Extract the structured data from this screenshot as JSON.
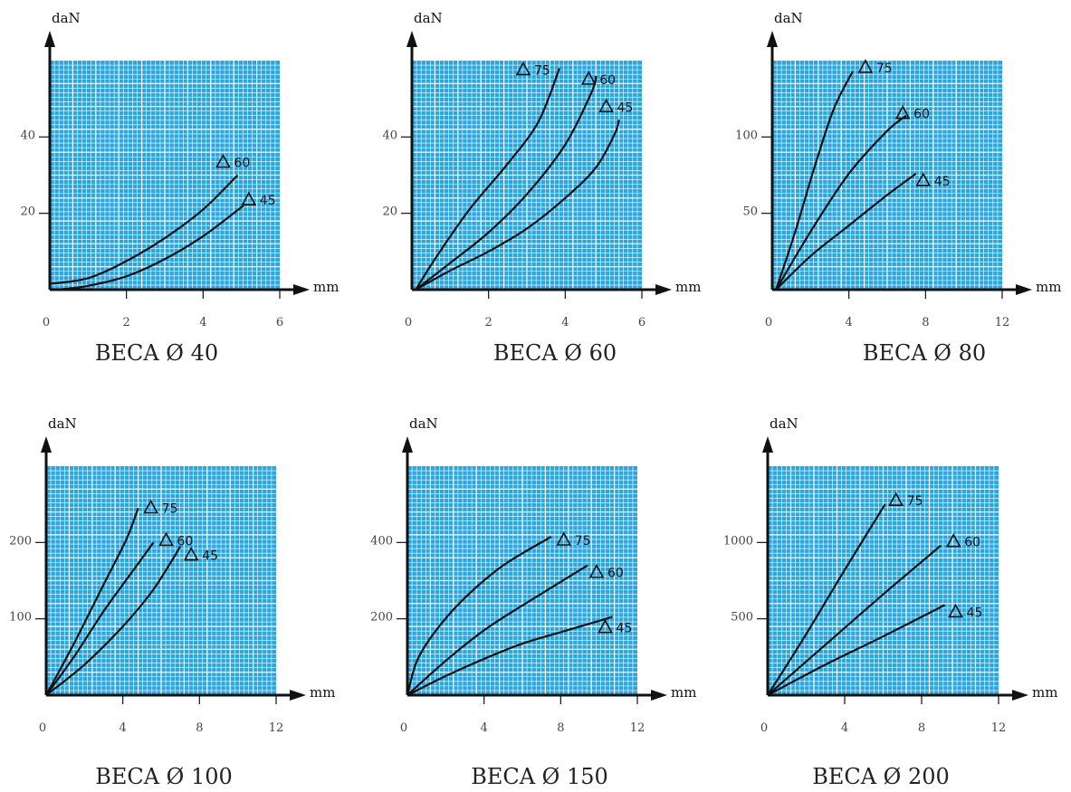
{
  "colors": {
    "grid_bg": "#2aa7df",
    "grid_line": "#ffffff",
    "axis": "#111111",
    "curve": "#111111"
  },
  "chart_data": [
    {
      "type": "line",
      "title": "BECA Ø 40",
      "xlabel": "mm",
      "ylabel": "daN",
      "xlim": [
        0,
        6
      ],
      "ylim": [
        0,
        60
      ],
      "xticks": [
        0,
        2,
        4,
        6
      ],
      "yticks": [
        20,
        40
      ],
      "grid": true,
      "marker": "triangle",
      "series": [
        {
          "name": "60",
          "points": [
            [
              0,
              1.5
            ],
            [
              1,
              3
            ],
            [
              2,
              7.5
            ],
            [
              3,
              13.5
            ],
            [
              4,
              21
            ],
            [
              4.9,
              30
            ]
          ]
        },
        {
          "name": "45",
          "points": [
            [
              0.2,
              0
            ],
            [
              1,
              1
            ],
            [
              2,
              3.5
            ],
            [
              3,
              8
            ],
            [
              4,
              14
            ],
            [
              5.05,
              22
            ]
          ]
        }
      ]
    },
    {
      "type": "line",
      "title": "BECA Ø 60",
      "xlabel": "mm",
      "ylabel": "daN",
      "xlim": [
        0,
        6
      ],
      "ylim": [
        0,
        60
      ],
      "xticks": [
        0,
        2,
        4,
        6
      ],
      "yticks": [
        20,
        40
      ],
      "grid": true,
      "marker": "triangle",
      "series": [
        {
          "name": "75",
          "points": [
            [
              0.1,
              0
            ],
            [
              0.6,
              8
            ],
            [
              1.5,
              21
            ],
            [
              2.5,
              33
            ],
            [
              3.3,
              44
            ],
            [
              3.85,
              58
            ]
          ]
        },
        {
          "name": "60",
          "points": [
            [
              0.1,
              0
            ],
            [
              1,
              7
            ],
            [
              2,
              15
            ],
            [
              3,
              25
            ],
            [
              4,
              38
            ],
            [
              4.7,
              52
            ],
            [
              4.8,
              56
            ]
          ]
        },
        {
          "name": "45",
          "points": [
            [
              0.1,
              0
            ],
            [
              1,
              5
            ],
            [
              2,
              10
            ],
            [
              3,
              16
            ],
            [
              4,
              24
            ],
            [
              4.8,
              32
            ],
            [
              5.3,
              41
            ],
            [
              5.4,
              44.5
            ]
          ]
        }
      ]
    },
    {
      "type": "line",
      "title": "BECA Ø 80",
      "xlabel": "mm",
      "ylabel": "daN",
      "xlim": [
        0,
        12
      ],
      "ylim": [
        0,
        150
      ],
      "xticks": [
        0,
        4,
        8,
        12
      ],
      "yticks": [
        50,
        100
      ],
      "grid": true,
      "marker": "triangle",
      "series": [
        {
          "name": "75",
          "points": [
            [
              0.2,
              0
            ],
            [
              1.2,
              38
            ],
            [
              2.2,
              80
            ],
            [
              3.2,
              118
            ],
            [
              4.2,
              143
            ]
          ]
        },
        {
          "name": "60",
          "points": [
            [
              0.2,
              0
            ],
            [
              2,
              38
            ],
            [
              4,
              76
            ],
            [
              6,
              104
            ],
            [
              7,
              114
            ]
          ]
        },
        {
          "name": "45",
          "points": [
            [
              0.2,
              0
            ],
            [
              2,
              22
            ],
            [
              4,
              42
            ],
            [
              6,
              62
            ],
            [
              7.5,
              76
            ]
          ]
        }
      ]
    },
    {
      "type": "line",
      "title": "BECA Ø 100",
      "xlabel": "mm",
      "ylabel": "daN",
      "xlim": [
        0,
        12
      ],
      "ylim": [
        0,
        300
      ],
      "xticks": [
        0,
        4,
        8,
        12
      ],
      "yticks": [
        100,
        200
      ],
      "grid": true,
      "marker": "triangle",
      "series": [
        {
          "name": "75",
          "points": [
            [
              0,
              0
            ],
            [
              1.5,
              70
            ],
            [
              3,
              145
            ],
            [
              4.2,
              205
            ],
            [
              4.8,
              245
            ]
          ]
        },
        {
          "name": "60",
          "points": [
            [
              0,
              0
            ],
            [
              1.5,
              52
            ],
            [
              3,
              110
            ],
            [
              4.5,
              162
            ],
            [
              5.6,
              200
            ]
          ]
        },
        {
          "name": "45",
          "points": [
            [
              0,
              0
            ],
            [
              2,
              40
            ],
            [
              4,
              90
            ],
            [
              5.5,
              135
            ],
            [
              6.6,
              178
            ],
            [
              7,
              195
            ]
          ]
        }
      ]
    },
    {
      "type": "line",
      "title": "BECA Ø 150",
      "xlabel": "mm",
      "ylabel": "daN",
      "xlim": [
        0,
        12
      ],
      "ylim": [
        0,
        600
      ],
      "xticks": [
        0,
        4,
        8,
        12
      ],
      "yticks": [
        200,
        400
      ],
      "grid": true,
      "marker": "triangle",
      "series": [
        {
          "name": "75",
          "points": [
            [
              0,
              0
            ],
            [
              0.5,
              90
            ],
            [
              1.5,
              170
            ],
            [
              3,
              255
            ],
            [
              5,
              340
            ],
            [
              7.5,
              415
            ]
          ]
        },
        {
          "name": "60",
          "points": [
            [
              0,
              0
            ],
            [
              2,
              90
            ],
            [
              4,
              170
            ],
            [
              6,
              235
            ],
            [
              9.4,
              340
            ]
          ]
        },
        {
          "name": "45",
          "points": [
            [
              0,
              0
            ],
            [
              2,
              50
            ],
            [
              4,
              95
            ],
            [
              6,
              135
            ],
            [
              8,
              165
            ],
            [
              10.7,
              205
            ]
          ]
        }
      ]
    },
    {
      "type": "line",
      "title": "BECA Ø 200",
      "xlabel": "mm",
      "ylabel": "daN",
      "xlim": [
        0,
        12
      ],
      "ylim": [
        0,
        1500
      ],
      "xticks": [
        0,
        4,
        8,
        12
      ],
      "yticks": [
        500,
        1000
      ],
      "grid": true,
      "marker": "triangle",
      "series": [
        {
          "name": "75",
          "points": [
            [
              0,
              0
            ],
            [
              2,
              400
            ],
            [
              4,
              820
            ],
            [
              6.1,
              1250
            ]
          ]
        },
        {
          "name": "60",
          "points": [
            [
              0,
              0
            ],
            [
              3,
              330
            ],
            [
              6,
              660
            ],
            [
              9,
              980
            ]
          ]
        },
        {
          "name": "45",
          "points": [
            [
              0,
              0
            ],
            [
              3,
              200
            ],
            [
              6,
              385
            ],
            [
              9.2,
              590
            ]
          ]
        }
      ]
    }
  ]
}
